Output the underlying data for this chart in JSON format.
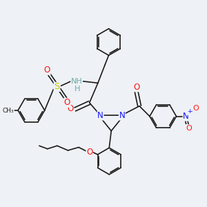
{
  "bg_color": "#eef1f5",
  "bond_color": "#1a1a1a",
  "bond_width": 1.2,
  "atom_colors": {
    "C": "#1a1a1a",
    "H": "#6aabab",
    "N": "#1414ff",
    "O": "#ff1414",
    "S": "#c8c800",
    "default": "#1a1a1a"
  },
  "font_size": 7.5,
  "figsize": [
    3.0,
    3.0
  ],
  "dpi": 100
}
